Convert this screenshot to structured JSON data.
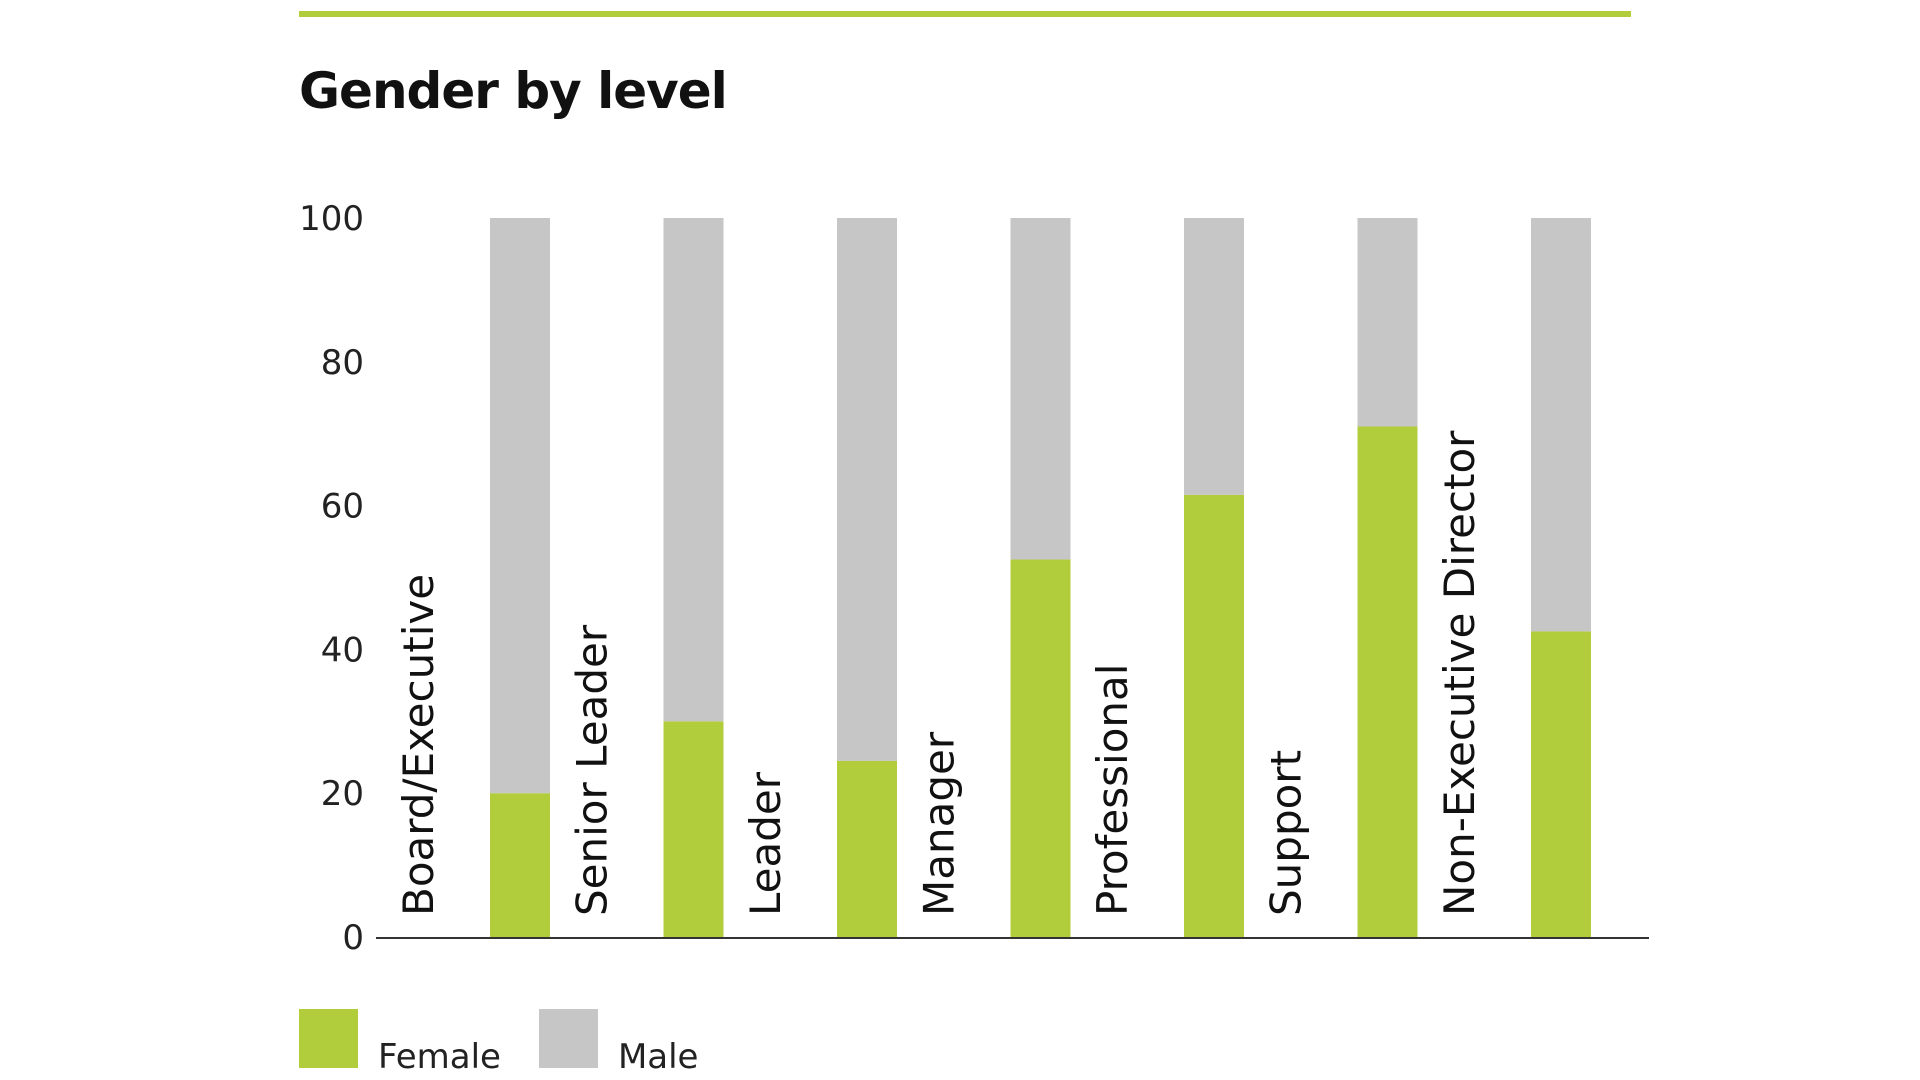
{
  "chart_data": {
    "type": "bar",
    "stacked": true,
    "title": "Gender by level",
    "categories": [
      "Board/Executive",
      "Senior Leader",
      "Leader",
      "Manager",
      "Professional",
      "Support",
      "Non-Executive Director"
    ],
    "series": [
      {
        "name": "Female",
        "color": "#b1cd3c",
        "values": [
          20,
          30,
          24.5,
          52.5,
          61.5,
          71,
          42.5
        ]
      },
      {
        "name": "Male",
        "color": "#c6c6c6",
        "values": [
          80,
          70,
          75.5,
          47.5,
          38.5,
          29,
          57.5
        ]
      }
    ],
    "yticks": [
      0,
      20,
      40,
      60,
      80,
      100
    ],
    "ylim": [
      0,
      100
    ],
    "xlabel": "",
    "ylabel": "",
    "grid": false,
    "legend_position": "bottom-left",
    "accent_color": "#b1cd3c",
    "axis_color": "#333333"
  }
}
